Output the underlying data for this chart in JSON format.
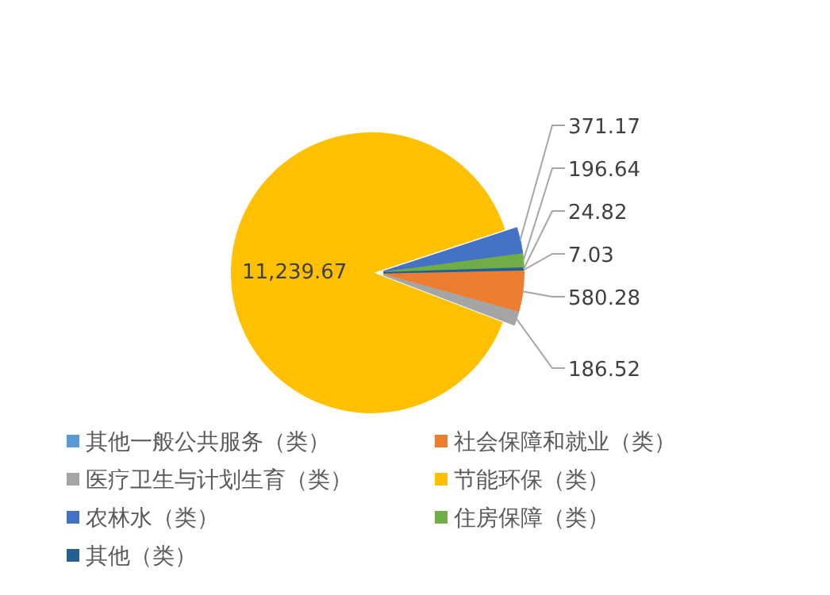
{
  "chart_data": {
    "type": "pie",
    "legend": "bottom",
    "categories": [
      "其他一般公共服务（类）",
      "社会保障和就业（类）",
      "医疗卫生与计划生育（类）",
      "节能环保（类）",
      "农林水（类）",
      "住房保障（类）",
      "其他（类）"
    ],
    "values": [
      7.03,
      580.28,
      186.52,
      11239.67,
      371.17,
      196.64,
      24.82
    ],
    "colors": [
      "#5b9bd5",
      "#ed7d31",
      "#a5a5a5",
      "#ffc000",
      "#4472c4",
      "#70ad47",
      "#255e91"
    ],
    "value_labels": [
      "7.03",
      "580.28",
      "186.52",
      "11,239.67",
      "371.17",
      "196.64",
      "24.82"
    ]
  }
}
